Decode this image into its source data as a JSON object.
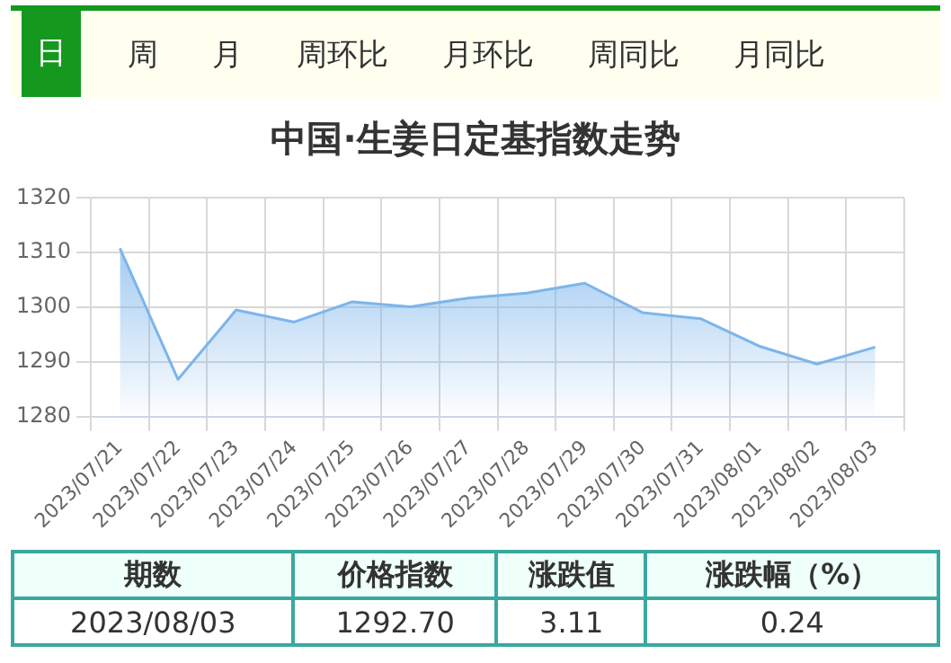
{
  "chart_data": {
    "type": "area",
    "title": "中国·生姜日定基指数走势",
    "categories": [
      "2023/07/21",
      "2023/07/22",
      "2023/07/23",
      "2023/07/24",
      "2023/07/25",
      "2023/07/26",
      "2023/07/27",
      "2023/07/28",
      "2023/07/29",
      "2023/07/30",
      "2023/07/31",
      "2023/08/01",
      "2023/08/02",
      "2023/08/03"
    ],
    "values": [
      1310.8,
      1286.8,
      1299.5,
      1297.3,
      1301.0,
      1300.1,
      1301.7,
      1302.6,
      1304.4,
      1299.0,
      1297.9,
      1292.9,
      1289.6,
      1292.7
    ],
    "color": "#7cb5ec",
    "ylim": [
      1280,
      1320
    ],
    "yticks": [
      1280,
      1290,
      1300,
      1310,
      1320
    ],
    "grid": true,
    "legend": false,
    "marker": "none",
    "annotations": [
      "日",
      "周",
      "月",
      "周环比",
      "月环比",
      "周同比",
      "月同比",
      "期数",
      "价格指数",
      "涨跌值",
      "涨跌幅（%）",
      "2023/08/03",
      "1292.70",
      "3.11",
      "0.24"
    ]
  }
}
